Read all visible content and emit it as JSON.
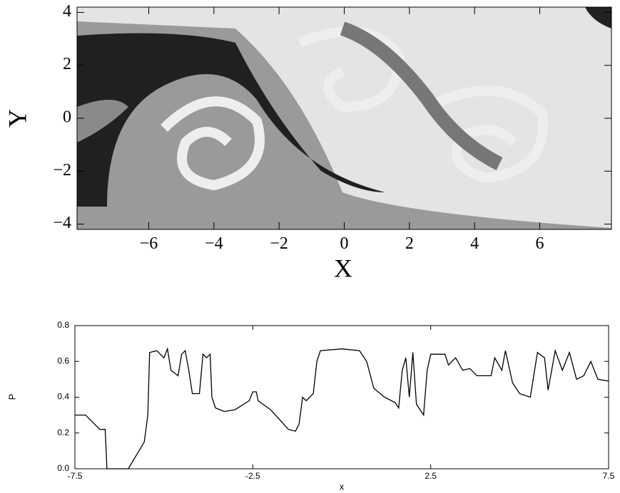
{
  "chart_data": [
    {
      "type": "image",
      "xlabel": "X",
      "ylabel": "Y",
      "xlim": [
        -8.2,
        8.2
      ],
      "ylim": [
        -4.2,
        4.2
      ],
      "xticks": [
        {
          "value": -6,
          "label": "−6"
        },
        {
          "value": -4,
          "label": "−4"
        },
        {
          "value": -2,
          "label": "−2"
        },
        0,
        2,
        4,
        6
      ],
      "yticks": [
        {
          "value": -4,
          "label": "−4"
        },
        {
          "value": -2,
          "label": "−2"
        },
        0,
        2,
        4
      ]
    },
    {
      "type": "line",
      "xlabel": "x",
      "ylabel": "P",
      "color": "#000000",
      "xlim": [
        -7.5,
        7.5
      ],
      "ylim": [
        0,
        0.8
      ],
      "xticks": [
        -7.5,
        -2.5,
        2.5,
        7.5
      ],
      "yticks": [
        {
          "value": 0,
          "label": "0.0"
        },
        {
          "value": 0.2,
          "label": "0.2"
        },
        {
          "value": 0.4,
          "label": "0.4"
        },
        {
          "value": 0.6,
          "label": "0.6"
        },
        {
          "value": 0.8,
          "label": "0.8"
        }
      ],
      "x": [
        -7.5,
        -7.2,
        -7.0,
        -6.8,
        -6.65,
        -6.6,
        -6.0,
        -5.55,
        -5.45,
        -5.4,
        -5.2,
        -5.0,
        -4.9,
        -4.8,
        -4.6,
        -4.5,
        -4.4,
        -4.3,
        -4.2,
        -4.0,
        -3.9,
        -3.8,
        -3.7,
        -3.65,
        -3.55,
        -3.3,
        -3.0,
        -2.6,
        -2.5,
        -2.4,
        -2.35,
        -2.0,
        -1.5,
        -1.3,
        -1.2,
        -1.1,
        -1.0,
        -0.8,
        -0.7,
        -0.6,
        0,
        0.5,
        0.7,
        0.9,
        1.2,
        1.5,
        1.6,
        1.7,
        1.8,
        1.9,
        2.0,
        2.1,
        2.3,
        2.4,
        2.5,
        2.9,
        3.0,
        3.2,
        3.4,
        3.6,
        3.8,
        4.2,
        4.3,
        4.5,
        4.6,
        4.8,
        5.0,
        5.3,
        5.5,
        5.7,
        5.8,
        6.0,
        6.2,
        6.4,
        6.6,
        6.8,
        7.0,
        7.2,
        7.5
      ],
      "values": [
        0.3,
        0.3,
        0.26,
        0.22,
        0.22,
        0.0,
        0.0,
        0.15,
        0.3,
        0.65,
        0.66,
        0.62,
        0.67,
        0.55,
        0.52,
        0.64,
        0.66,
        0.55,
        0.42,
        0.42,
        0.64,
        0.62,
        0.64,
        0.4,
        0.34,
        0.32,
        0.33,
        0.38,
        0.43,
        0.43,
        0.38,
        0.33,
        0.22,
        0.21,
        0.25,
        0.4,
        0.38,
        0.42,
        0.6,
        0.66,
        0.67,
        0.66,
        0.6,
        0.45,
        0.4,
        0.37,
        0.34,
        0.55,
        0.62,
        0.4,
        0.65,
        0.36,
        0.3,
        0.55,
        0.64,
        0.64,
        0.58,
        0.62,
        0.55,
        0.56,
        0.52,
        0.52,
        0.62,
        0.55,
        0.66,
        0.48,
        0.42,
        0.4,
        0.65,
        0.62,
        0.44,
        0.66,
        0.55,
        0.65,
        0.5,
        0.52,
        0.6,
        0.5,
        0.49
      ]
    }
  ]
}
